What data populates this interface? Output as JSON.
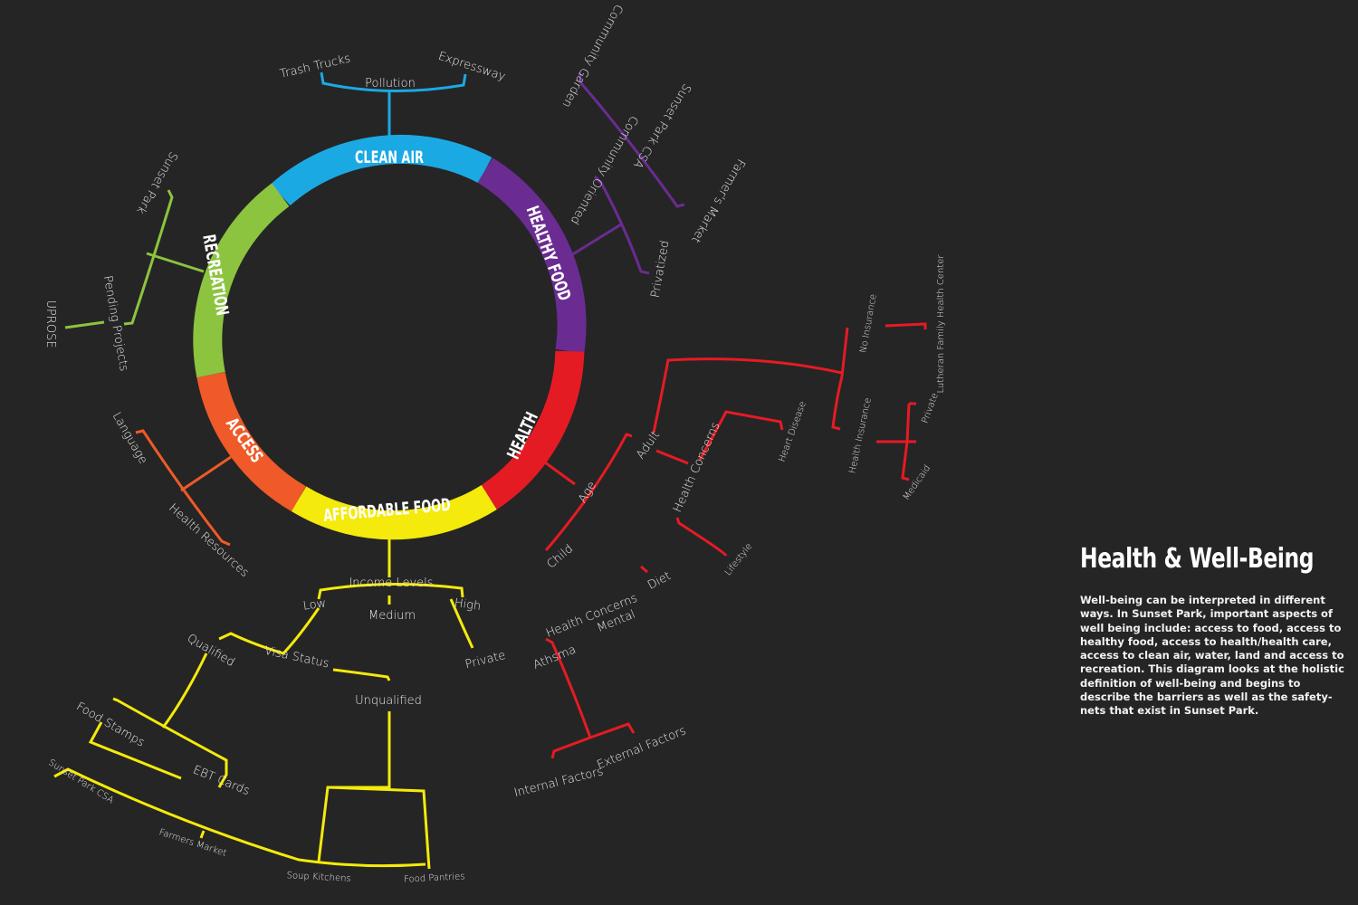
{
  "title": "Health & Well-Being",
  "description": "Well-being can be interpreted in different ways. In Sunset Park, important aspects of well being include: access to food, access to healthy food, access to health/health care, access to clean air, water, land and access to recreation. This diagram looks at the holistic definition of well-being and begins to describe the barriers as well as the safety-nets that exist in Sunset Park.",
  "colors": {
    "background": "#252525",
    "clean_air": "#1ba9e4",
    "healthy_food": "#6a2c91",
    "health": "#e51b24",
    "affordable_food": "#f4ea0b",
    "access": "#ef5a28",
    "recreation": "#8cc43f"
  },
  "segments": {
    "clean_air": "CLEAN AIR",
    "healthy_food": "HEALTHY FOOD",
    "health": "HEALTH",
    "affordable_food": "AFFORDABLE FOOD",
    "access": "ACCESS",
    "recreation": "RECREATION"
  },
  "clean_air": {
    "pollution": "Pollution",
    "trash_trucks": "Trash Trucks",
    "expressway": "Expressway"
  },
  "healthy_food": {
    "community_oriented": "Community Oriented",
    "privatized": "Privatized",
    "community_garden": "Community Garden",
    "csa": "Sunset Park CSA",
    "farmers_market": "Farmer's Market"
  },
  "recreation": {
    "sunset_park": "Sunset Park",
    "pending_projects": "Pending Projects",
    "uprose": "UPROSE"
  },
  "access": {
    "language": "Language",
    "health_resources": "Health Resources"
  },
  "health": {
    "age": "Age",
    "child": "Child",
    "adult": "Adult",
    "health_concerns_adult": "Health Concerns",
    "heart_disease": "Heart Disease",
    "lifestyle": "Lifestyle",
    "no_insurance": "No Insurance",
    "lutheran": "Lutheran Family Health Center",
    "health_insurance": "Health Insurance",
    "private": "Private",
    "medicaid": "Medicaid",
    "health_concerns_child": "Health Concerns",
    "diet": "Diet",
    "mental": "Mental",
    "athsma": "Athsma",
    "internal_factors": "Internal Factors",
    "external_factors": "External Factors"
  },
  "affordable_food": {
    "income_levels": "Income Levels",
    "low": "Low",
    "medium": "Medium",
    "high": "High",
    "private": "Private",
    "visa_status": "Visa Status",
    "qualified": "Qualified",
    "unqualified": "Unqualified",
    "food_stamps": "Food Stamps",
    "ebt_cards": "EBT Cards",
    "sunset_park_csa": "Sunset Park CSA",
    "farmers_market": "Farmers Market",
    "soup_kitchens": "Soup Kitchens",
    "food_pantries": "Food Pantries"
  }
}
